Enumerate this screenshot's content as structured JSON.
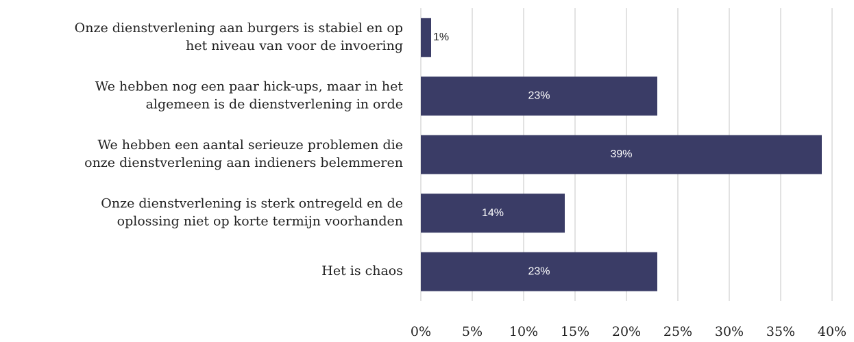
{
  "chart_data": {
    "type": "bar",
    "orientation": "horizontal",
    "categories": [
      [
        "Onze dienstverlening aan burgers is stabiel en op",
        "het niveau van voor de invoering"
      ],
      [
        "We hebben nog een paar hick-ups, maar in het",
        "algemeen is de dienstverlening in orde"
      ],
      [
        "We hebben een aantal serieuze problemen die",
        "onze dienstverlening aan indieners belemmeren"
      ],
      [
        "Onze dienstverlening is sterk ontregeld en de",
        "oplossing niet op korte termijn voorhanden"
      ],
      [
        "Het is chaos"
      ]
    ],
    "values": [
      1,
      23,
      39,
      14,
      23
    ],
    "value_labels": [
      "1%",
      "23%",
      "39%",
      "14%",
      "23%"
    ],
    "color": "#3a3c66",
    "xlim": [
      0,
      40
    ],
    "xticks": [
      {
        "value": 0,
        "label": "0%"
      },
      {
        "value": 5,
        "label": "5%"
      },
      {
        "value": 10,
        "label": "10%"
      },
      {
        "value": 15,
        "label": "15%"
      },
      {
        "value": 20,
        "label": "20%"
      },
      {
        "value": 25,
        "label": "25%"
      },
      {
        "value": 30,
        "label": "30%"
      },
      {
        "value": 35,
        "label": "35%"
      },
      {
        "value": 40,
        "label": "40%"
      }
    ],
    "grid": true
  }
}
